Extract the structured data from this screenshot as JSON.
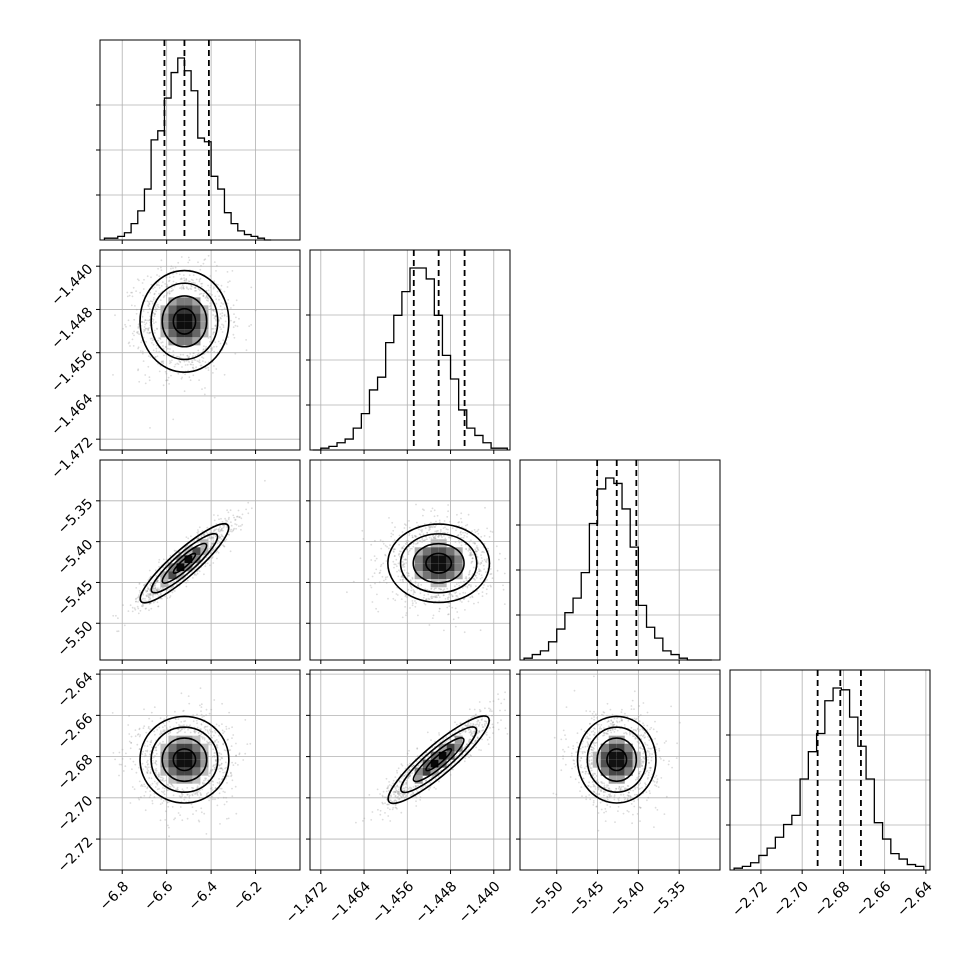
{
  "chart_data": {
    "type": "corner",
    "parameters": [
      {
        "range": [
          -6.9,
          -6.0
        ],
        "ticks": [
          "−6.8",
          "−6.6",
          "−6.4",
          "−6.2"
        ],
        "tick_values": [
          -6.8,
          -6.6,
          -6.4,
          -6.2
        ],
        "hist_bins": [
          -6.88,
          -6.85,
          -6.82,
          -6.79,
          -6.76,
          -6.73,
          -6.7,
          -6.67,
          -6.64,
          -6.61,
          -6.58,
          -6.55,
          -6.52,
          -6.49,
          -6.46,
          -6.43,
          -6.4,
          -6.37,
          -6.34,
          -6.31,
          -6.28,
          -6.25,
          -6.22,
          -6.19,
          -6.16,
          -6.13
        ],
        "hist_counts": [
          0.01,
          0.01,
          0.02,
          0.04,
          0.09,
          0.16,
          0.28,
          0.55,
          0.6,
          0.78,
          0.92,
          1.0,
          0.93,
          0.82,
          0.56,
          0.54,
          0.35,
          0.28,
          0.15,
          0.09,
          0.05,
          0.03,
          0.02,
          0.01,
          0.0
        ],
        "quantiles": [
          -6.61,
          -6.52,
          -6.41
        ],
        "median": -6.52
      },
      {
        "range": [
          -1.474,
          -1.437
        ],
        "ticks": [
          "−1.472",
          "−1.464",
          "−1.456",
          "−1.448",
          "−1.440"
        ],
        "tick_values": [
          -1.472,
          -1.464,
          -1.456,
          -1.448,
          -1.44
        ],
        "hist_bins": [
          -1.4735,
          -1.472,
          -1.4705,
          -1.469,
          -1.4675,
          -1.466,
          -1.4645,
          -1.463,
          -1.4615,
          -1.46,
          -1.4585,
          -1.457,
          -1.4555,
          -1.454,
          -1.4525,
          -1.451,
          -1.4495,
          -1.448,
          -1.4465,
          -1.445,
          -1.4435,
          -1.442,
          -1.4405,
          -1.439,
          -1.4375
        ],
        "hist_counts": [
          0.0,
          0.01,
          0.02,
          0.04,
          0.06,
          0.12,
          0.2,
          0.33,
          0.4,
          0.59,
          0.74,
          0.87,
          1.0,
          1.0,
          0.94,
          0.74,
          0.52,
          0.39,
          0.22,
          0.12,
          0.08,
          0.04,
          0.01,
          0.01
        ],
        "quantiles": [
          -1.4548,
          -1.4502,
          -1.4454
        ],
        "median": -1.4502
      },
      {
        "range": [
          -5.545,
          -5.3
        ],
        "ticks": [
          "−5.50",
          "−5.45",
          "−5.40",
          "−5.35"
        ],
        "tick_values": [
          -5.5,
          -5.45,
          -5.4,
          -5.35
        ],
        "hist_bins": [
          -5.54,
          -5.53,
          -5.52,
          -5.51,
          -5.5,
          -5.49,
          -5.48,
          -5.47,
          -5.46,
          -5.45,
          -5.44,
          -5.43,
          -5.42,
          -5.41,
          -5.4,
          -5.39,
          -5.38,
          -5.37,
          -5.36,
          -5.35,
          -5.34,
          -5.33,
          -5.32,
          -5.31
        ],
        "hist_counts": [
          0.01,
          0.03,
          0.05,
          0.1,
          0.17,
          0.26,
          0.34,
          0.48,
          0.75,
          0.94,
          1.0,
          0.97,
          0.83,
          0.62,
          0.3,
          0.18,
          0.12,
          0.05,
          0.03,
          0.01,
          0.0,
          0.0,
          0.0
        ],
        "quantiles": [
          -5.4505,
          -5.4265,
          -5.4025
        ],
        "median": -5.4265
      },
      {
        "range": [
          -2.735,
          -2.638
        ],
        "ticks": [
          "−2.72",
          "−2.70",
          "−2.68",
          "−2.66",
          "−2.64"
        ],
        "tick_values": [
          -2.72,
          -2.7,
          -2.68,
          -2.66,
          -2.64
        ],
        "hist_bins": [
          -2.733,
          -2.729,
          -2.725,
          -2.721,
          -2.717,
          -2.713,
          -2.709,
          -2.705,
          -2.701,
          -2.697,
          -2.693,
          -2.689,
          -2.685,
          -2.681,
          -2.677,
          -2.673,
          -2.669,
          -2.665,
          -2.661,
          -2.657,
          -2.653,
          -2.649,
          -2.645,
          -2.641
        ],
        "hist_counts": [
          0.01,
          0.02,
          0.04,
          0.08,
          0.12,
          0.18,
          0.25,
          0.3,
          0.5,
          0.65,
          0.75,
          0.93,
          1.0,
          0.99,
          0.84,
          0.68,
          0.5,
          0.26,
          0.17,
          0.09,
          0.06,
          0.03,
          0.02
        ],
        "quantiles": [
          -2.6925,
          -2.6815,
          -2.6715
        ],
        "median": -2.6815
      }
    ],
    "correlations": [
      {
        "i": 1,
        "j": 0,
        "rho": 0.0
      },
      {
        "i": 2,
        "j": 0,
        "rho": 0.9
      },
      {
        "i": 2,
        "j": 1,
        "rho": 0.0
      },
      {
        "i": 3,
        "j": 0,
        "rho": 0.0
      },
      {
        "i": 3,
        "j": 1,
        "rho": 0.9
      },
      {
        "i": 3,
        "j": 2,
        "rho": 0.0
      }
    ],
    "levels_sigma": [
      0.5,
      1.0,
      1.5,
      2.0
    ],
    "show_grid": true,
    "colors": {
      "points": "#9a9a9a",
      "line": "#000000",
      "grid": "#b0b0b0"
    }
  }
}
